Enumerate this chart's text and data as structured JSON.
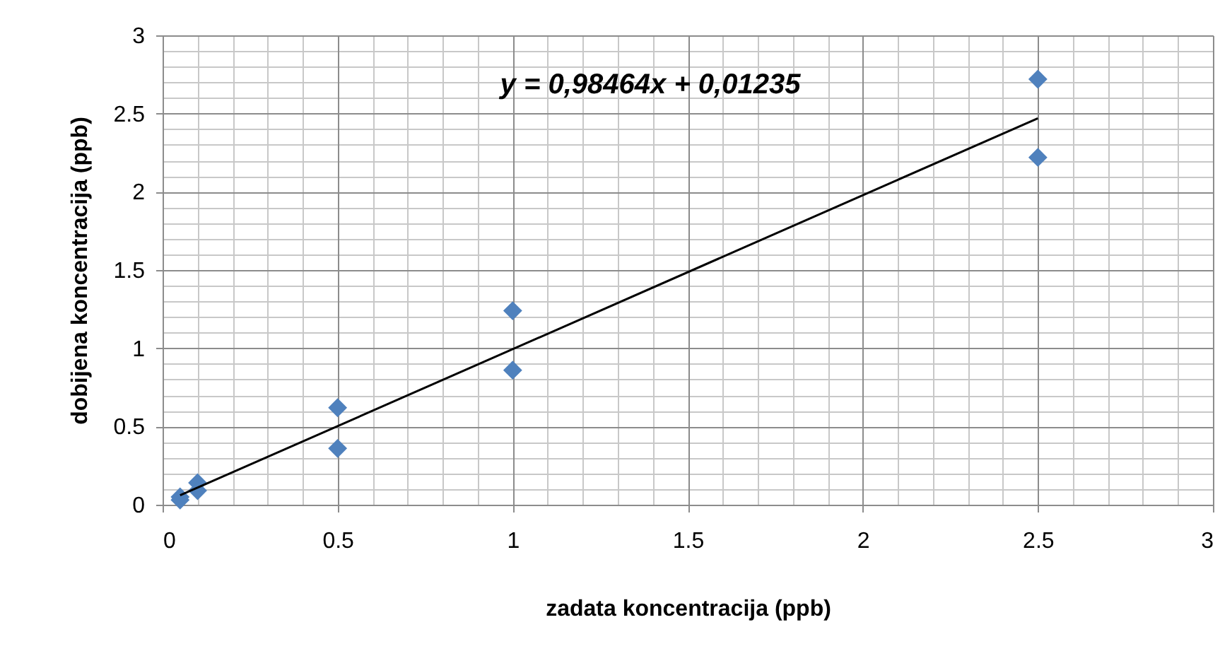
{
  "chart_data": {
    "type": "scatter",
    "xlabel": "zadata koncentracija (ppb)",
    "ylabel": "dobijena koncentracija (ppb)",
    "annotations": [
      "y = 0,98464x + 0,01235"
    ],
    "x": [
      0.05,
      0.05,
      0.1,
      0.1,
      0.5,
      0.5,
      1,
      1,
      2.5,
      2.5
    ],
    "series": [
      {
        "type": "scatter",
        "color": "#4f81bd",
        "marker": "diamond",
        "values": [
          0.05,
          0.03,
          0.14,
          0.09,
          0.62,
          0.36,
          1.24,
          0.86,
          2.72,
          2.22
        ]
      },
      {
        "type": "line",
        "color": "#000000",
        "x": [
          0.05,
          2.5
        ],
        "values": [
          0.06,
          2.47
        ]
      }
    ],
    "xlim": [
      0,
      3
    ],
    "xticks": [
      0,
      0.5,
      1,
      1.5,
      2,
      2.5,
      3
    ],
    "ylim": [
      0,
      3
    ],
    "yticks": [
      0,
      0.5,
      1,
      1.5,
      2,
      2.5,
      3
    ],
    "grid": true
  }
}
